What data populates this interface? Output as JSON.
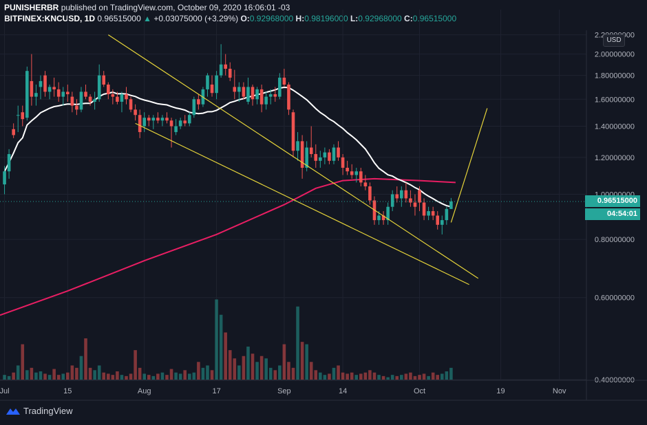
{
  "header": {
    "publisher": "PUNISHERBR",
    "published_text": "published on TradingView.com, October 09, 2020 16:06:01 -03",
    "symbol": "BITFINEX:KNCUSD, 1D",
    "last": "0.96515000",
    "change_arrow": "▲",
    "change": "+0.03075000 (+3.29%)",
    "o_label": "O:",
    "o": "0.92968000",
    "h_label": "H:",
    "h": "0.98196000",
    "l_label": "L:",
    "l": "0.92968000",
    "c_label": "C:",
    "c": "0.96515000"
  },
  "currency_button": "USD",
  "price_tag": "0.96515000",
  "countdown_tag": "04:54:01",
  "brand": "TradingView",
  "colors": {
    "background": "#131722",
    "up": "#26a69a",
    "down": "#ef5350",
    "ma_fast": "#ffffff",
    "ma_slow": "#e91e63",
    "trendlines": "#e6d43a",
    "grid": "#1f2330"
  },
  "chart_data": {
    "type": "candlestick",
    "y_scale": "log",
    "ylim": [
      0.4,
      2.25
    ],
    "yticks": [
      "2.20000000",
      "2.00000000",
      "1.80000000",
      "1.60000000",
      "1.40000000",
      "1.20000000",
      "1.00000000",
      "0.80000000",
      "0.60000000",
      "0.40000000"
    ],
    "xtick_labels": [
      "Jul",
      "15",
      "Aug",
      "17",
      "Sep",
      "14",
      "Oct",
      "19",
      "Nov"
    ],
    "x_range": [
      "2020-06-30",
      "2020-11-07"
    ],
    "last_price": 0.96515,
    "candles": [
      [
        "2020-07-01",
        1.05,
        1.15,
        1.0,
        1.12
      ],
      [
        "2020-07-02",
        1.12,
        1.25,
        1.08,
        1.22
      ],
      [
        "2020-07-03",
        1.38,
        1.42,
        1.32,
        1.34
      ],
      [
        "2020-07-04",
        1.48,
        1.55,
        1.36,
        1.48
      ],
      [
        "2020-07-05",
        1.5,
        1.55,
        1.4,
        1.45
      ],
      [
        "2020-07-06",
        1.46,
        1.88,
        1.44,
        1.84
      ],
      [
        "2020-07-07",
        1.75,
        2.0,
        1.55,
        1.62
      ],
      [
        "2020-07-08",
        1.62,
        1.72,
        1.55,
        1.65
      ],
      [
        "2020-07-09",
        1.7,
        1.8,
        1.6,
        1.75
      ],
      [
        "2020-07-10",
        1.8,
        1.84,
        1.62,
        1.66
      ],
      [
        "2020-07-11",
        1.66,
        1.72,
        1.6,
        1.7
      ],
      [
        "2020-07-12",
        1.7,
        1.78,
        1.62,
        1.68
      ],
      [
        "2020-07-13",
        1.68,
        1.74,
        1.58,
        1.62
      ],
      [
        "2020-07-14",
        1.62,
        1.7,
        1.55,
        1.66
      ],
      [
        "2020-07-15",
        1.66,
        1.72,
        1.58,
        1.64
      ],
      [
        "2020-07-16",
        1.62,
        1.66,
        1.5,
        1.55
      ],
      [
        "2020-07-17",
        1.55,
        1.6,
        1.48,
        1.52
      ],
      [
        "2020-07-18",
        1.52,
        1.7,
        1.5,
        1.66
      ],
      [
        "2020-07-19",
        1.66,
        1.72,
        1.6,
        1.62
      ],
      [
        "2020-07-20",
        1.62,
        1.64,
        1.55,
        1.58
      ],
      [
        "2020-07-21",
        1.58,
        1.66,
        1.52,
        1.6
      ],
      [
        "2020-07-22",
        1.6,
        1.9,
        1.58,
        1.8
      ],
      [
        "2020-07-23",
        1.8,
        1.84,
        1.7,
        1.72
      ],
      [
        "2020-07-24",
        1.72,
        1.74,
        1.6,
        1.64
      ],
      [
        "2020-07-25",
        1.64,
        1.68,
        1.56,
        1.62
      ],
      [
        "2020-07-26",
        1.62,
        1.66,
        1.56,
        1.58
      ],
      [
        "2020-07-27",
        1.58,
        1.66,
        1.5,
        1.64
      ],
      [
        "2020-07-28",
        1.64,
        1.7,
        1.56,
        1.6
      ],
      [
        "2020-07-29",
        1.6,
        1.62,
        1.5,
        1.52
      ],
      [
        "2020-07-30",
        1.52,
        1.56,
        1.44,
        1.48
      ],
      [
        "2020-07-31",
        1.48,
        1.52,
        1.32,
        1.36
      ],
      [
        "2020-08-01",
        1.4,
        1.5,
        1.36,
        1.46
      ],
      [
        "2020-08-02",
        1.46,
        1.48,
        1.4,
        1.44
      ],
      [
        "2020-08-03",
        1.44,
        1.48,
        1.38,
        1.46
      ],
      [
        "2020-08-04",
        1.46,
        1.5,
        1.42,
        1.44
      ],
      [
        "2020-08-05",
        1.44,
        1.48,
        1.4,
        1.46
      ],
      [
        "2020-08-06",
        1.46,
        1.5,
        1.42,
        1.44
      ],
      [
        "2020-08-07",
        1.44,
        1.46,
        1.26,
        1.4
      ],
      [
        "2020-08-08",
        1.36,
        1.45,
        1.34,
        1.4
      ],
      [
        "2020-08-09",
        1.4,
        1.46,
        1.38,
        1.44
      ],
      [
        "2020-08-10",
        1.44,
        1.48,
        1.4,
        1.42
      ],
      [
        "2020-08-11",
        1.42,
        1.5,
        1.4,
        1.48
      ],
      [
        "2020-08-12",
        1.48,
        1.62,
        1.46,
        1.6
      ],
      [
        "2020-08-13",
        1.6,
        1.64,
        1.52,
        1.56
      ],
      [
        "2020-08-14",
        1.56,
        1.7,
        1.54,
        1.68
      ],
      [
        "2020-08-15",
        1.68,
        1.82,
        1.62,
        1.8
      ],
      [
        "2020-08-16",
        1.72,
        1.8,
        1.62,
        1.65
      ],
      [
        "2020-08-17",
        1.65,
        1.84,
        1.6,
        1.8
      ],
      [
        "2020-08-18",
        1.8,
        2.1,
        1.78,
        1.9
      ],
      [
        "2020-08-19",
        1.9,
        2.0,
        1.8,
        1.86
      ],
      [
        "2020-08-20",
        1.86,
        1.92,
        1.75,
        1.78
      ],
      [
        "2020-08-21",
        1.7,
        1.85,
        1.6,
        1.66
      ],
      [
        "2020-08-22",
        1.66,
        1.74,
        1.58,
        1.7
      ],
      [
        "2020-08-23",
        1.7,
        1.74,
        1.6,
        1.62
      ],
      [
        "2020-08-24",
        1.58,
        1.78,
        1.56,
        1.7
      ],
      [
        "2020-08-25",
        1.7,
        1.72,
        1.55,
        1.6
      ],
      [
        "2020-08-26",
        1.6,
        1.7,
        1.56,
        1.68
      ],
      [
        "2020-08-27",
        1.68,
        1.72,
        1.5,
        1.56
      ],
      [
        "2020-08-28",
        1.56,
        1.66,
        1.52,
        1.62
      ],
      [
        "2020-08-29",
        1.62,
        1.68,
        1.56,
        1.64
      ],
      [
        "2020-08-30",
        1.64,
        1.7,
        1.58,
        1.62
      ],
      [
        "2020-08-31",
        1.62,
        1.82,
        1.6,
        1.78
      ],
      [
        "2020-09-01",
        1.78,
        1.86,
        1.7,
        1.72
      ],
      [
        "2020-09-02",
        1.72,
        1.74,
        1.48,
        1.52
      ],
      [
        "2020-09-03",
        1.5,
        1.52,
        1.2,
        1.24
      ],
      [
        "2020-09-04",
        1.24,
        1.36,
        1.18,
        1.3
      ],
      [
        "2020-09-05",
        1.3,
        1.34,
        1.08,
        1.14
      ],
      [
        "2020-09-06",
        1.14,
        1.3,
        1.12,
        1.26
      ],
      [
        "2020-09-07",
        1.26,
        1.4,
        1.2,
        1.22
      ],
      [
        "2020-09-08",
        1.22,
        1.28,
        1.14,
        1.18
      ],
      [
        "2020-09-09",
        1.18,
        1.24,
        1.14,
        1.2
      ],
      [
        "2020-09-10",
        1.2,
        1.26,
        1.16,
        1.23
      ],
      [
        "2020-09-11",
        1.23,
        1.25,
        1.16,
        1.18
      ],
      [
        "2020-09-12",
        1.18,
        1.28,
        1.16,
        1.26
      ],
      [
        "2020-09-13",
        1.26,
        1.3,
        1.18,
        1.2
      ],
      [
        "2020-09-14",
        1.2,
        1.22,
        1.1,
        1.14
      ],
      [
        "2020-09-15",
        1.14,
        1.18,
        1.1,
        1.12
      ],
      [
        "2020-09-16",
        1.12,
        1.16,
        1.08,
        1.1
      ],
      [
        "2020-09-17",
        1.1,
        1.14,
        1.06,
        1.12
      ],
      [
        "2020-09-18",
        1.12,
        1.14,
        1.04,
        1.06
      ],
      [
        "2020-09-19",
        1.06,
        1.1,
        1.02,
        1.04
      ],
      [
        "2020-09-20",
        1.04,
        1.06,
        0.95,
        0.97
      ],
      [
        "2020-09-21",
        0.97,
        0.99,
        0.86,
        0.88
      ],
      [
        "2020-09-22",
        0.88,
        0.92,
        0.86,
        0.9
      ],
      [
        "2020-09-23",
        0.9,
        0.92,
        0.86,
        0.88
      ],
      [
        "2020-09-24",
        0.88,
        0.96,
        0.86,
        0.94
      ],
      [
        "2020-09-25",
        0.94,
        1.02,
        0.92,
        1.0
      ],
      [
        "2020-09-26",
        1.0,
        1.04,
        0.96,
        0.98
      ],
      [
        "2020-09-27",
        0.98,
        1.04,
        0.94,
        1.02
      ],
      [
        "2020-09-28",
        1.02,
        1.06,
        0.96,
        0.98
      ],
      [
        "2020-09-29",
        0.98,
        1.02,
        0.94,
        0.96
      ],
      [
        "2020-09-30",
        0.96,
        1.0,
        0.9,
        0.94
      ],
      [
        "2020-10-01",
        1.02,
        1.04,
        0.92,
        0.96
      ],
      [
        "2020-10-02",
        0.96,
        0.98,
        0.88,
        0.9
      ],
      [
        "2020-10-03",
        0.9,
        0.94,
        0.88,
        0.92
      ],
      [
        "2020-10-04",
        0.92,
        0.94,
        0.88,
        0.9
      ],
      [
        "2020-10-05",
        0.9,
        0.92,
        0.84,
        0.86
      ],
      [
        "2020-10-06",
        0.86,
        0.9,
        0.82,
        0.88
      ],
      [
        "2020-10-07",
        0.88,
        0.94,
        0.86,
        0.93
      ],
      [
        "2020-10-08",
        0.93,
        0.98196,
        0.92968,
        0.96515
      ]
    ],
    "volume": [
      0.04,
      0.03,
      0.06,
      0.12,
      0.3,
      0.08,
      0.1,
      0.06,
      0.07,
      0.05,
      0.04,
      0.09,
      0.04,
      0.05,
      0.06,
      0.12,
      0.1,
      0.2,
      0.35,
      0.1,
      0.08,
      0.12,
      0.06,
      0.05,
      0.04,
      0.07,
      0.04,
      0.03,
      0.05,
      0.25,
      0.1,
      0.05,
      0.04,
      0.03,
      0.05,
      0.06,
      0.04,
      0.09,
      0.06,
      0.05,
      0.08,
      0.05,
      0.06,
      0.15,
      0.1,
      0.12,
      0.08,
      0.68,
      0.55,
      0.4,
      0.25,
      0.18,
      0.12,
      0.2,
      0.28,
      0.22,
      0.15,
      0.2,
      0.18,
      0.1,
      0.08,
      0.12,
      0.3,
      0.15,
      0.1,
      0.62,
      0.32,
      0.3,
      0.15,
      0.08,
      0.06,
      0.04,
      0.05,
      0.1,
      0.12,
      0.06,
      0.05,
      0.06,
      0.04,
      0.05,
      0.06,
      0.08,
      0.06,
      0.04,
      0.03,
      0.02,
      0.04,
      0.03,
      0.04,
      0.05,
      0.06,
      0.03,
      0.04,
      0.05,
      0.03,
      0.06,
      0.04,
      0.05,
      0.07,
      0.1
    ],
    "ma_fast": {
      "period": 20,
      "color": "#ffffff"
    },
    "ma_slow": {
      "period": 200,
      "color": "#e91e63",
      "points": [
        [
          "2020-06-30",
          0.55
        ],
        [
          "2020-07-15",
          0.62
        ],
        [
          "2020-08-01",
          0.72
        ],
        [
          "2020-08-17",
          0.82
        ],
        [
          "2020-09-01",
          0.95
        ],
        [
          "2020-09-08",
          1.03
        ],
        [
          "2020-09-14",
          1.07
        ],
        [
          "2020-09-21",
          1.08
        ],
        [
          "2020-10-01",
          1.07
        ],
        [
          "2020-10-09",
          1.06
        ]
      ]
    },
    "trendlines": [
      {
        "from": [
          "2020-07-24",
          2.2
        ],
        "to": [
          "2020-10-14",
          0.66
        ]
      },
      {
        "from": [
          "2020-07-30",
          1.42
        ],
        "to": [
          "2020-10-12",
          0.64
        ]
      },
      {
        "from": [
          "2020-10-08",
          0.87
        ],
        "to": [
          "2020-10-16",
          1.53
        ]
      }
    ]
  }
}
